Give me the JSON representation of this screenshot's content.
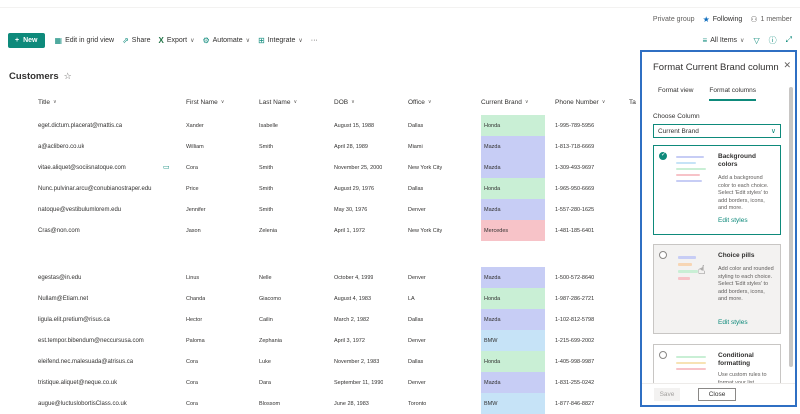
{
  "header": {
    "group_type": "Private group",
    "following_label": "Following",
    "member_count": "1 member"
  },
  "command_bar": {
    "new_label": "New",
    "edit_grid_label": "Edit in grid view",
    "share_label": "Share",
    "export_label": "Export",
    "automate_label": "Automate",
    "integrate_label": "Integrate",
    "more_label": "···",
    "view_label": "All Items"
  },
  "list": {
    "title": "Customers",
    "columns": {
      "title": "Title",
      "first_name": "First Name",
      "last_name": "Last Name",
      "dob": "DOB",
      "office": "Office",
      "current_brand": "Current Brand",
      "phone": "Phone Number",
      "extra": "Ta"
    },
    "rows": [
      {
        "title": "eget.dictum.placerat@mattis.ca",
        "first": "Xander",
        "last": "Isabelle",
        "dob": "August 15, 1988",
        "office": "Dallas",
        "brand": "Honda",
        "phone": "1-995-789-5956"
      },
      {
        "title": "a@aclibero.co.uk",
        "first": "William",
        "last": "Smith",
        "dob": "April 28, 1989",
        "office": "Miami",
        "brand": "Mazda",
        "phone": "1-813-718-6669"
      },
      {
        "title": "vitae.aliquet@sociisnatoque.com",
        "first": "Cora",
        "last": "Smith",
        "dob": "November 25, 2000",
        "office": "New York City",
        "brand": "Mazda",
        "phone": "1-309-493-9697"
      },
      {
        "title": "Nunc.pulvinar.arcu@conubianostraper.edu",
        "first": "Price",
        "last": "Smith",
        "dob": "August 29, 1976",
        "office": "Dallas",
        "brand": "Honda",
        "phone": "1-965-950-6669"
      },
      {
        "title": "natoque@vestibulumlorem.edu",
        "first": "Jennifer",
        "last": "Smith",
        "dob": "May 30, 1976",
        "office": "Denver",
        "brand": "Mazda",
        "phone": "1-557-280-1625"
      },
      {
        "title": "Cras@non.com",
        "first": "Jason",
        "last": "Zelenia",
        "dob": "April 1, 1972",
        "office": "New York City",
        "brand": "Mercedes",
        "phone": "1-481-185-6401"
      },
      {
        "title": "egestas@in.edu",
        "first": "Linus",
        "last": "Nelle",
        "dob": "October 4, 1999",
        "office": "Denver",
        "brand": "Mazda",
        "phone": "1-500-572-8640"
      },
      {
        "title": "Nullam@Etiam.net",
        "first": "Chanda",
        "last": "Giacomo",
        "dob": "August 4, 1983",
        "office": "LA",
        "brand": "Honda",
        "phone": "1-987-286-2721"
      },
      {
        "title": "ligula.elit.pretium@risus.ca",
        "first": "Hector",
        "last": "Cailin",
        "dob": "March 2, 1982",
        "office": "Dallas",
        "brand": "Mazda",
        "phone": "1-102-812-5798"
      },
      {
        "title": "est.tempor.bibendum@neccursusa.com",
        "first": "Paloma",
        "last": "Zephania",
        "dob": "April 3, 1972",
        "office": "Denver",
        "brand": "BMW",
        "phone": "1-215-699-2002"
      },
      {
        "title": "eleifend.nec.malesuada@atrisus.ca",
        "first": "Cora",
        "last": "Luke",
        "dob": "November 2, 1983",
        "office": "Dallas",
        "brand": "Honda",
        "phone": "1-405-998-9987"
      },
      {
        "title": "tristique.aliquet@neque.co.uk",
        "first": "Cora",
        "last": "Dara",
        "dob": "September 11, 1990",
        "office": "Denver",
        "brand": "Mazda",
        "phone": "1-831-255-0242"
      },
      {
        "title": "augue@luctuslobortisClass.co.uk",
        "first": "Cora",
        "last": "Blossom",
        "dob": "June 28, 1983",
        "office": "Toronto",
        "brand": "BMW",
        "phone": "1-877-846-8827"
      }
    ]
  },
  "brand_colors": {
    "Honda": "#c9efd5",
    "Mazda": "#c7cdf5",
    "Mercedes": "#f7c3c8",
    "BMW": "#c6e3f7"
  },
  "panel": {
    "title": "Format Current Brand column",
    "tab_format_view": "Format view",
    "tab_format_columns": "Format columns",
    "choose_column_label": "Choose Column",
    "selected_column": "Current Brand",
    "cards": [
      {
        "title": "Background colors",
        "description": "Add a background color to each choice. Select 'Edit styles' to add borders, icons, and more.",
        "link": "Edit styles"
      },
      {
        "title": "Choice pills",
        "description": "Add color and rounded styling to each choice. Select 'Edit styles' to add borders, icons, and more.",
        "link": "Edit styles"
      },
      {
        "title": "Conditional formatting",
        "description": "Use custom rules to format your list"
      }
    ],
    "save_label": "Save",
    "close_label": "Close"
  }
}
